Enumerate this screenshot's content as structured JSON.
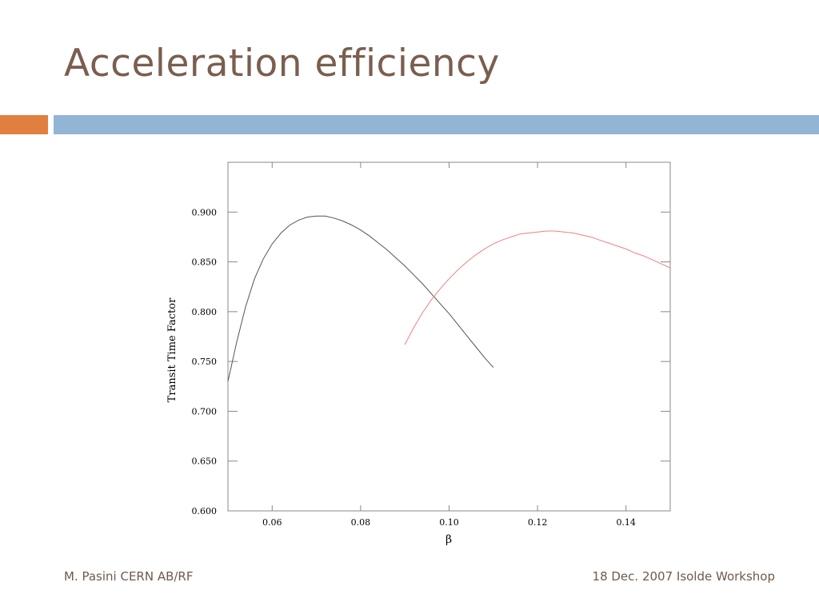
{
  "slide": {
    "title": "Acceleration efficiency",
    "footer_left": "M. Pasini CERN AB/RF",
    "footer_right": "18 Dec. 2007 Isolde Workshop"
  },
  "colors": {
    "title": "#7a5e4f",
    "accent_orange": "#e07f3f",
    "accent_blue": "#92b4d5",
    "series_black": "#555555",
    "series_red": "#f08080"
  },
  "chart_data": {
    "type": "line",
    "title": "",
    "xlabel": "β",
    "ylabel": "Transit Time Factor",
    "xlim": [
      0.05,
      0.15
    ],
    "ylim": [
      0.6,
      0.95
    ],
    "xticks": [
      0.06,
      0.08,
      0.1,
      0.12,
      0.14
    ],
    "xtick_labels": [
      "0.06",
      "0.08",
      "0.10",
      "0.12",
      "0.14"
    ],
    "yticks": [
      0.6,
      0.65,
      0.7,
      0.75,
      0.8,
      0.85,
      0.9
    ],
    "ytick_labels": [
      "0.600",
      "0.650",
      "0.700",
      "0.750",
      "0.800",
      "0.850",
      "0.900"
    ],
    "grid": false,
    "legend": "none",
    "series": [
      {
        "color": "#555555",
        "x": [
          0.05,
          0.052,
          0.054,
          0.056,
          0.058,
          0.06,
          0.062,
          0.064,
          0.066,
          0.068,
          0.07,
          0.072,
          0.074,
          0.076,
          0.078,
          0.08,
          0.082,
          0.084,
          0.086,
          0.088,
          0.09,
          0.092,
          0.094,
          0.096,
          0.098,
          0.1,
          0.102,
          0.104,
          0.106,
          0.108,
          0.11
        ],
        "y": [
          0.73,
          0.77,
          0.805,
          0.833,
          0.853,
          0.868,
          0.879,
          0.887,
          0.892,
          0.895,
          0.896,
          0.896,
          0.894,
          0.891,
          0.887,
          0.882,
          0.876,
          0.869,
          0.862,
          0.854,
          0.846,
          0.837,
          0.828,
          0.818,
          0.808,
          0.798,
          0.787,
          0.776,
          0.765,
          0.754,
          0.744
        ]
      },
      {
        "color": "#f08080",
        "x": [
          0.09,
          0.092,
          0.094,
          0.096,
          0.098,
          0.1,
          0.102,
          0.104,
          0.106,
          0.108,
          0.11,
          0.112,
          0.114,
          0.116,
          0.118,
          0.12,
          0.122,
          0.124,
          0.126,
          0.128,
          0.13,
          0.132,
          0.134,
          0.136,
          0.138,
          0.14,
          0.142,
          0.144,
          0.146,
          0.148,
          0.15
        ],
        "y": [
          0.767,
          0.784,
          0.799,
          0.812,
          0.823,
          0.833,
          0.842,
          0.85,
          0.857,
          0.863,
          0.868,
          0.872,
          0.875,
          0.878,
          0.879,
          0.88,
          0.881,
          0.881,
          0.88,
          0.879,
          0.877,
          0.875,
          0.872,
          0.869,
          0.866,
          0.863,
          0.859,
          0.856,
          0.852,
          0.848,
          0.844
        ]
      }
    ]
  }
}
